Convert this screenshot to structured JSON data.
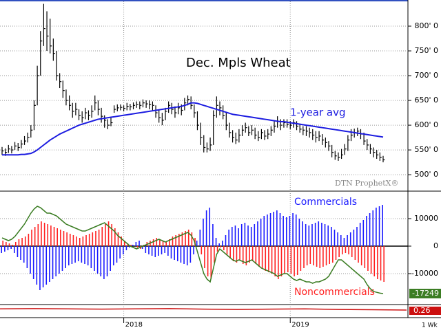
{
  "chart_data": [
    {
      "type": "ohlc",
      "title": "Dec. Mpls Wheat",
      "watermark": "DTN ProphetX®",
      "interval": "1 Wk",
      "color": "#000000",
      "categories": [
        null,
        null,
        null,
        null,
        null,
        null,
        null,
        null,
        null,
        null,
        null,
        null,
        null,
        null,
        null,
        null,
        null,
        null,
        null,
        null,
        null,
        null,
        null,
        null,
        null,
        null,
        null,
        null,
        null,
        null,
        null,
        null,
        null,
        null,
        null,
        null,
        null,
        null,
        "2018",
        null,
        null,
        null,
        null,
        null,
        null,
        null,
        null,
        null,
        null,
        null,
        null,
        null,
        null,
        null,
        null,
        null,
        null,
        null,
        null,
        null,
        null,
        null,
        null,
        null,
        null,
        null,
        null,
        null,
        null,
        null,
        null,
        null,
        null,
        null,
        null,
        null,
        null,
        null,
        null,
        null,
        null,
        null,
        null,
        null,
        null,
        null,
        null,
        null,
        null,
        null,
        "2019",
        null,
        null,
        null,
        null,
        null,
        null,
        null,
        null,
        null,
        null,
        null,
        null,
        null,
        null,
        null,
        null,
        null,
        null,
        null,
        null,
        null,
        null,
        null,
        null,
        null,
        null,
        null,
        null,
        null
      ],
      "high": [
        556,
        553,
        560,
        558,
        566,
        564,
        570,
        578,
        585,
        600,
        650,
        720,
        790,
        845,
        830,
        815,
        775,
        750,
        705,
        690,
        672,
        660,
        645,
        645,
        632,
        628,
        635,
        630,
        640,
        660,
        650,
        635,
        620,
        612,
        615,
        640,
        642,
        642,
        640,
        645,
        643,
        646,
        648,
        648,
        652,
        650,
        650,
        648,
        640,
        630,
        625,
        635,
        648,
        645,
        638,
        645,
        642,
        655,
        660,
        658,
        642,
        628,
        605,
        580,
        565,
        575,
        630,
        658,
        648,
        640,
        625,
        605,
        590,
        585,
        592,
        600,
        605,
        598,
        600,
        595,
        588,
        592,
        590,
        592,
        598,
        608,
        618,
        612,
        612,
        612,
        608,
        612,
        608,
        602,
        598,
        598,
        595,
        592,
        588,
        588,
        582,
        575,
        568,
        560,
        548,
        545,
        552,
        562,
        580,
        592,
        593,
        595,
        592,
        585,
        572,
        562,
        555,
        550,
        545,
        538
      ],
      "low": [
        540,
        538,
        544,
        543,
        550,
        548,
        553,
        560,
        565,
        575,
        590,
        640,
        700,
        760,
        750,
        745,
        730,
        690,
        675,
        655,
        640,
        630,
        615,
        620,
        610,
        605,
        612,
        610,
        615,
        630,
        620,
        605,
        595,
        592,
        598,
        625,
        628,
        630,
        628,
        630,
        630,
        632,
        635,
        632,
        636,
        635,
        632,
        628,
        615,
        605,
        600,
        610,
        625,
        622,
        615,
        622,
        620,
        630,
        640,
        632,
        615,
        590,
        560,
        545,
        545,
        548,
        560,
        615,
        620,
        612,
        590,
        575,
        565,
        562,
        565,
        578,
        585,
        578,
        580,
        572,
        568,
        572,
        570,
        572,
        578,
        585,
        595,
        590,
        595,
        595,
        592,
        595,
        590,
        585,
        580,
        578,
        575,
        570,
        565,
        568,
        560,
        555,
        548,
        535,
        530,
        528,
        532,
        540,
        548,
        568,
        575,
        578,
        572,
        560,
        550,
        542,
        535,
        532,
        528,
        525
      ],
      "close": [
        548,
        545,
        552,
        550,
        558,
        555,
        562,
        568,
        575,
        590,
        640,
        700,
        770,
        795,
        780,
        760,
        745,
        700,
        688,
        670,
        650,
        640,
        628,
        632,
        620,
        615,
        625,
        620,
        628,
        645,
        632,
        618,
        610,
        600,
        605,
        632,
        635,
        636,
        634,
        638,
        637,
        640,
        642,
        640,
        645,
        643,
        642,
        640,
        625,
        615,
        610,
        628,
        640,
        632,
        625,
        635,
        630,
        645,
        652,
        640,
        625,
        600,
        575,
        555,
        552,
        560,
        620,
        640,
        635,
        620,
        600,
        585,
        575,
        570,
        580,
        590,
        595,
        585,
        590,
        580,
        575,
        585,
        578,
        582,
        590,
        598,
        608,
        600,
        605,
        602,
        600,
        605,
        598,
        592,
        590,
        588,
        585,
        580,
        575,
        578,
        570,
        565,
        558,
        545,
        538,
        535,
        540,
        552,
        570,
        580,
        585,
        588,
        582,
        568,
        560,
        552,
        545,
        540,
        535,
        530
      ],
      "series": [
        {
          "name": "1-year avg",
          "color": "#1c1ce0",
          "values": [
            540,
            540,
            540,
            540,
            540,
            540,
            541,
            541,
            542,
            543,
            546,
            550,
            555,
            560,
            565,
            570,
            574,
            578,
            582,
            585,
            588,
            591,
            594,
            597,
            600,
            602,
            604,
            606,
            608,
            610,
            612,
            613,
            614,
            615,
            616,
            617,
            618,
            619,
            620,
            621,
            622,
            623,
            624,
            625,
            626,
            627,
            628,
            629,
            630,
            631,
            632,
            633,
            634,
            635,
            636,
            637,
            638,
            640,
            642,
            645,
            645,
            644,
            642,
            640,
            638,
            636,
            634,
            632,
            630,
            628,
            626,
            624,
            622,
            621,
            620,
            619,
            618,
            617,
            616,
            615,
            614,
            613,
            612,
            611,
            610,
            609,
            608,
            607,
            607,
            606,
            605,
            604,
            603,
            602,
            601,
            600,
            599,
            598,
            597,
            596,
            595,
            594,
            593,
            592,
            591,
            590,
            589,
            588,
            587,
            586,
            585,
            584,
            583,
            582,
            581,
            580,
            579,
            578,
            577,
            576
          ]
        }
      ],
      "ylim": [
        471,
        850
      ],
      "yticks": [
        {
          "value": 800,
          "label": "800' 0"
        },
        {
          "value": 750,
          "label": "750' 0"
        },
        {
          "value": 700,
          "label": "700' 0"
        },
        {
          "value": 650,
          "label": "650' 0"
        },
        {
          "value": 600,
          "label": "600' 0"
        },
        {
          "value": 550,
          "label": "550' 0"
        },
        {
          "value": 500,
          "label": "500' 0"
        }
      ],
      "grid": true
    },
    {
      "type": "bar",
      "series": [
        {
          "name": "Commercials",
          "color": "#1a1aff",
          "values": [
            -2500,
            -2000,
            -1500,
            -1000,
            -2500,
            -4000,
            -5000,
            -6000,
            -8000,
            -10000,
            -12000,
            -14000,
            -16000,
            -15000,
            -14000,
            -13000,
            -12000,
            -11000,
            -10000,
            -9000,
            -8000,
            -7000,
            -6500,
            -6000,
            -5500,
            -6000,
            -6500,
            -7000,
            -8000,
            -9000,
            -10000,
            -11000,
            -12000,
            -11000,
            -9000,
            -7000,
            -6000,
            -4500,
            -3000,
            -1500,
            -500,
            500,
            1500,
            2000,
            -1000,
            -2500,
            -3000,
            -3500,
            -4000,
            -3500,
            -3000,
            -2500,
            -3500,
            -4500,
            -5000,
            -5500,
            -6000,
            -6500,
            -7000,
            -6000,
            -3000,
            2000,
            6000,
            10000,
            13000,
            14000,
            8000,
            3000,
            1000,
            2000,
            4000,
            6000,
            7000,
            7500,
            6500,
            8000,
            8500,
            7500,
            7000,
            8000,
            9000,
            10000,
            11000,
            11500,
            12000,
            12500,
            13000,
            12000,
            11000,
            10500,
            11000,
            12000,
            11500,
            10000,
            9000,
            8000,
            7500,
            8000,
            8500,
            9000,
            8500,
            8000,
            7500,
            7000,
            6000,
            5000,
            4000,
            3000,
            4000,
            5000,
            6000,
            7000,
            8500,
            9500,
            11000,
            12000,
            13000,
            14000,
            14500,
            15000
          ]
        },
        {
          "name": "Noncommercials",
          "color": "#ff2020",
          "values": [
            2000,
            1500,
            1000,
            500,
            1500,
            2500,
            3000,
            3500,
            4500,
            6000,
            7000,
            8000,
            9000,
            8500,
            8000,
            7500,
            7000,
            6500,
            6000,
            5500,
            5000,
            4500,
            4000,
            3500,
            3000,
            3500,
            4000,
            4500,
            5000,
            5500,
            6000,
            7000,
            8000,
            9000,
            8000,
            6500,
            5000,
            3500,
            2000,
            1000,
            500,
            0,
            -500,
            -1000,
            500,
            1500,
            2000,
            2500,
            3000,
            2500,
            2000,
            1500,
            2500,
            3500,
            4000,
            4500,
            5000,
            5500,
            6000,
            5000,
            3000,
            0,
            -3000,
            -8000,
            -11000,
            -12000,
            -6000,
            -2000,
            -500,
            -1500,
            -3000,
            -4500,
            -5500,
            -6000,
            -5000,
            -6500,
            -7000,
            -6000,
            -5500,
            -6500,
            -7500,
            -8000,
            -9000,
            -9500,
            -10000,
            -11000,
            -12000,
            -11000,
            -10000,
            -9500,
            -10000,
            -11000,
            -10500,
            -9000,
            -8000,
            -7000,
            -6500,
            -7000,
            -7500,
            -8000,
            -7500,
            -7000,
            -6500,
            -6000,
            -5000,
            -4000,
            -3000,
            -2500,
            -3000,
            -4000,
            -5000,
            -6000,
            -7000,
            -8000,
            -9000,
            -10000,
            -11000,
            -12000,
            -12500,
            -13000
          ]
        },
        {
          "type": "line",
          "color": "#3b7d23",
          "values": [
            3000,
            2500,
            2000,
            2500,
            3500,
            5000,
            6500,
            8000,
            10000,
            12000,
            13500,
            14500,
            14000,
            13000,
            12000,
            12000,
            11500,
            11000,
            10000,
            9000,
            8000,
            7500,
            7000,
            6500,
            6000,
            5500,
            5500,
            6000,
            6500,
            7000,
            7500,
            8000,
            8500,
            7500,
            6500,
            5500,
            4000,
            3000,
            2000,
            1000,
            0,
            -500,
            -1000,
            -500,
            0,
            500,
            1000,
            1500,
            2000,
            2500,
            2000,
            1500,
            2000,
            2500,
            3000,
            3500,
            4000,
            4500,
            5000,
            4000,
            2000,
            -2000,
            -6000,
            -10000,
            -12000,
            -13000,
            -8000,
            -3000,
            -1000,
            -2000,
            -3000,
            -4000,
            -5000,
            -5500,
            -5000,
            -5500,
            -6000,
            -5500,
            -5000,
            -6000,
            -7000,
            -8000,
            -8500,
            -9000,
            -9500,
            -10000,
            -11000,
            -10500,
            -10000,
            -10000,
            -11000,
            -12000,
            -12500,
            -12000,
            -12500,
            -13000,
            -13000,
            -13500,
            -13000,
            -13000,
            -12500,
            -12000,
            -11000,
            -9000,
            -7000,
            -5000,
            -5000,
            -6000,
            -7000,
            -8000,
            -9000,
            -10000,
            -11000,
            -12000,
            -14000,
            -15500,
            -16500,
            -16800,
            -17100,
            -17249
          ]
        }
      ],
      "ylim": [
        -20500,
        19000
      ],
      "yticks": [
        10000,
        0,
        -10000
      ],
      "grid": true
    },
    {
      "type": "line",
      "color": "#cc1010",
      "values": [
        0.3,
        0.31,
        0.3,
        0.29,
        0.3,
        0.31,
        0.29,
        0.28,
        0.29,
        0.3,
        0.28,
        0.27,
        0.26
      ],
      "ylim": [
        0,
        0.4
      ]
    }
  ]
}
